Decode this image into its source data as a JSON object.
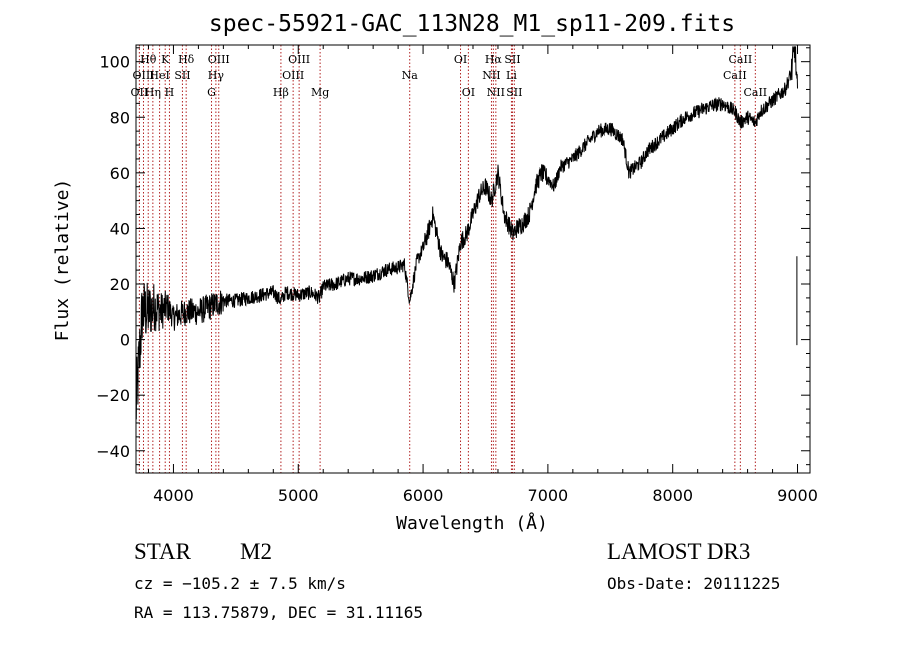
{
  "chart_data": {
    "type": "line",
    "title": "spec-55921-GAC_113N28_M1_sp11-209.fits",
    "xlabel": "Wavelength (Å)",
    "ylabel": "Flux (relative)",
    "xlim": [
      3700,
      9100
    ],
    "ylim": [
      -48,
      106
    ],
    "xticks": [
      4000,
      5000,
      6000,
      7000,
      8000,
      9000
    ],
    "yticks": [
      -40,
      -20,
      0,
      20,
      40,
      60,
      80,
      100
    ],
    "tick_labels": {
      "x": [
        "4000",
        "5000",
        "6000",
        "7000",
        "8000",
        "9000"
      ],
      "y": [
        "−40",
        "−20",
        "0",
        "20",
        "40",
        "60",
        "80",
        "100"
      ]
    },
    "line_color": "#000000",
    "marker_color": "#b22222",
    "spectrum_anchors": {
      "x": [
        3700,
        3750,
        3800,
        3850,
        3900,
        3950,
        4000,
        4100,
        4200,
        4300,
        4400,
        4500,
        4600,
        4700,
        4800,
        4861,
        4900,
        5000,
        5100,
        5170,
        5200,
        5300,
        5400,
        5500,
        5600,
        5700,
        5800,
        5850,
        5893,
        5950,
        6000,
        6050,
        6080,
        6100,
        6150,
        6200,
        6250,
        6300,
        6350,
        6400,
        6450,
        6500,
        6550,
        6600,
        6650,
        6700,
        6720,
        6750,
        6800,
        6850,
        6900,
        6950,
        7000,
        7050,
        7100,
        7200,
        7300,
        7400,
        7500,
        7600,
        7650,
        7700,
        7750,
        7800,
        7900,
        8000,
        8100,
        8200,
        8300,
        8400,
        8500,
        8542,
        8600,
        8662,
        8700,
        8750,
        8800,
        8850,
        8900,
        8950,
        8980,
        9000
      ],
      "y": [
        -25,
        10,
        10,
        12,
        10,
        12,
        8,
        10,
        10,
        12,
        14,
        14,
        15,
        16,
        17,
        14,
        17,
        16,
        17,
        15,
        19,
        20,
        22,
        22,
        23,
        25,
        26,
        27,
        14,
        28,
        33,
        40,
        45,
        40,
        30,
        28,
        20,
        35,
        38,
        45,
        52,
        55,
        50,
        60,
        45,
        40,
        38,
        40,
        42,
        45,
        55,
        60,
        58,
        55,
        62,
        65,
        70,
        75,
        76,
        72,
        60,
        62,
        64,
        68,
        72,
        76,
        80,
        82,
        84,
        85,
        82,
        78,
        80,
        78,
        82,
        84,
        86,
        88,
        90,
        96,
        105,
        88
      ]
    },
    "line_markers": [
      {
        "label": "OII",
        "x": 3727,
        "row": 3
      },
      {
        "label": "Hθ",
        "x": 3798,
        "row": 1
      },
      {
        "label": "OIII",
        "x": 3760,
        "row": 2
      },
      {
        "label": "Hη",
        "x": 3835,
        "row": 3
      },
      {
        "label": "HeI",
        "x": 3889,
        "row": 2
      },
      {
        "label": "K",
        "x": 3934,
        "row": 1
      },
      {
        "label": "H",
        "x": 3968,
        "row": 3
      },
      {
        "label": "SII",
        "x": 4072,
        "row": 2
      },
      {
        "label": "Hδ",
        "x": 4102,
        "row": 1
      },
      {
        "label": "OIII",
        "x": 4363,
        "row": 1
      },
      {
        "label": "Hγ",
        "x": 4340,
        "row": 2
      },
      {
        "label": "G",
        "x": 4305,
        "row": 3
      },
      {
        "label": "OIII",
        "x": 5007,
        "row": 1
      },
      {
        "label": "OIII",
        "x": 4959,
        "row": 2
      },
      {
        "label": "Hβ",
        "x": 4861,
        "row": 3
      },
      {
        "label": "Mg",
        "x": 5175,
        "row": 3
      },
      {
        "label": "Na",
        "x": 5893,
        "row": 2
      },
      {
        "label": "OI",
        "x": 6300,
        "row": 1
      },
      {
        "label": "OI",
        "x": 6363,
        "row": 3
      },
      {
        "label": "Hα",
        "x": 6563,
        "row": 1
      },
      {
        "label": "NII",
        "x": 6548,
        "row": 2
      },
      {
        "label": "NII",
        "x": 6583,
        "row": 3
      },
      {
        "label": "SII",
        "x": 6716,
        "row": 1
      },
      {
        "label": "Li",
        "x": 6708,
        "row": 2
      },
      {
        "label": "SII",
        "x": 6731,
        "row": 3
      },
      {
        "label": "CaII",
        "x": 8542,
        "row": 1
      },
      {
        "label": "CaII",
        "x": 8498,
        "row": 2
      },
      {
        "label": "CaII",
        "x": 8662,
        "row": 3
      }
    ]
  },
  "info": {
    "class_text": "STAR",
    "subclass_text": "M2",
    "survey_text": "LAMOST DR3",
    "cz_text": "cz = −105.2 ± 7.5 km/s",
    "obsdate_text": "Obs-Date: 20111225",
    "coords_text": "RA = 113.75879, DEC =  31.11165"
  }
}
